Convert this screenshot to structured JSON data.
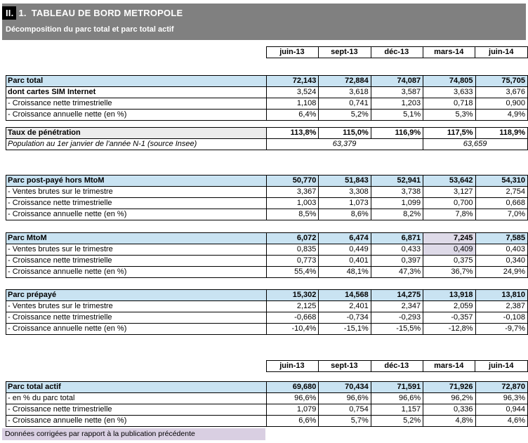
{
  "header": {
    "badge": "II.",
    "number": "1.",
    "title": "TABLEAU DE BORD METROPOLE",
    "subtitle": "Décomposition du parc total et parc total actif"
  },
  "table": {
    "columns": [
      "juin-13",
      "sept-13",
      "déc-13",
      "mars-14",
      "juin-14"
    ],
    "sections": [
      {
        "id": "header1",
        "kind": "columns"
      },
      {
        "id": "parc-total",
        "kind": "section",
        "header": {
          "label": "Parc total",
          "style": "blue",
          "values": [
            "72,143",
            "72,884",
            "74,087",
            "74,805",
            "75,705"
          ]
        },
        "rows": [
          {
            "label": "dont cartes SIM Internet",
            "style": "indent-bold",
            "values": [
              "3,524",
              "3,618",
              "3,587",
              "3,633",
              "3,676"
            ]
          },
          {
            "label": "- Croissance nette trimestrielle",
            "values": [
              "1,108",
              "0,741",
              "1,203",
              "0,718",
              "0,900"
            ]
          },
          {
            "label": "- Croissance annuelle nette (en %)",
            "values": [
              "6,4%",
              "5,2%",
              "5,1%",
              "5,3%",
              "4,9%"
            ]
          }
        ]
      },
      {
        "id": "taux",
        "kind": "taux",
        "header": {
          "label": "Taux de pénétration",
          "style": "gray",
          "values": [
            "113,8%",
            "115,0%",
            "116,9%",
            "117,5%",
            "118,9%"
          ]
        },
        "population": {
          "label": "Population au 1er janvier de l'année N-1 (source Insee)",
          "left": "63,379",
          "right": "63,659"
        }
      },
      {
        "id": "post-paye",
        "kind": "section",
        "header": {
          "label": "Parc post-payé hors MtoM",
          "style": "blue",
          "values": [
            "50,770",
            "51,843",
            "52,941",
            "53,642",
            "54,310"
          ]
        },
        "rows": [
          {
            "label": "- Ventes brutes sur le trimestre",
            "values": [
              "3,367",
              "3,308",
              "3,738",
              "3,127",
              "2,754"
            ]
          },
          {
            "label": "- Croissance nette trimestrielle",
            "values": [
              "1,003",
              "1,073",
              "1,099",
              "0,700",
              "0,668"
            ]
          },
          {
            "label": "- Croissance annuelle nette (en %)",
            "values": [
              "8,5%",
              "8,6%",
              "8,2%",
              "7,8%",
              "7,0%"
            ]
          }
        ]
      },
      {
        "id": "mtom",
        "kind": "section",
        "header": {
          "label": "Parc MtoM",
          "style": "blue",
          "highlight": [
            3
          ],
          "values": [
            "6,072",
            "6,474",
            "6,871",
            "7,245",
            "7,585"
          ]
        },
        "rows": [
          {
            "label": "- Ventes brutes sur le trimestre",
            "highlight": [
              3
            ],
            "values": [
              "0,835",
              "0,449",
              "0,433",
              "0,409",
              "0,403"
            ]
          },
          {
            "label": "- Croissance nette trimestrielle",
            "values": [
              "0,773",
              "0,401",
              "0,397",
              "0,375",
              "0,340"
            ]
          },
          {
            "label": "- Croissance annuelle nette (en %)",
            "values": [
              "55,4%",
              "48,1%",
              "47,3%",
              "36,7%",
              "24,9%"
            ]
          }
        ]
      },
      {
        "id": "prepaye",
        "kind": "section",
        "header": {
          "label": "Parc prépayé",
          "style": "blue",
          "values": [
            "15,302",
            "14,568",
            "14,275",
            "13,918",
            "13,810"
          ]
        },
        "rows": [
          {
            "label": "- Ventes brutes sur le trimestre",
            "values": [
              "2,125",
              "2,401",
              "2,347",
              "2,059",
              "2,387"
            ]
          },
          {
            "label": "- Croissance nette trimestrielle",
            "values": [
              "-0,668",
              "-0,734",
              "-0,293",
              "-0,357",
              "-0,108"
            ]
          },
          {
            "label": "- Croissance annuelle nette (en %)",
            "values": [
              "-10,4%",
              "-15,1%",
              "-15,5%",
              "-12,8%",
              "-9,7%"
            ]
          }
        ]
      },
      {
        "id": "header2",
        "kind": "columns"
      },
      {
        "id": "actif",
        "kind": "section",
        "header": {
          "label": "Parc total actif",
          "style": "blue",
          "values": [
            "69,680",
            "70,434",
            "71,591",
            "71,926",
            "72,870"
          ]
        },
        "rows": [
          {
            "label": "- en % du parc total",
            "values": [
              "96,6%",
              "96,6%",
              "96,6%",
              "96,2%",
              "96,3%"
            ]
          },
          {
            "label": "- Croissance nette trimestrielle",
            "values": [
              "1,079",
              "0,754",
              "1,157",
              "0,336",
              "0,944"
            ]
          },
          {
            "label": "- Croissance annuelle nette (en %)",
            "values": [
              "6,6%",
              "5,7%",
              "5,2%",
              "4,8%",
              "4,6%"
            ]
          }
        ]
      }
    ]
  },
  "footer_note": "Données corrigées par rapport à la publication précédente",
  "colors": {
    "title_bar": "#808080",
    "section_row": "#c9e3f2",
    "penetration_row": "#ececec",
    "corrected_highlight": "#dedae8",
    "footer_bar": "#d9cfe2"
  }
}
